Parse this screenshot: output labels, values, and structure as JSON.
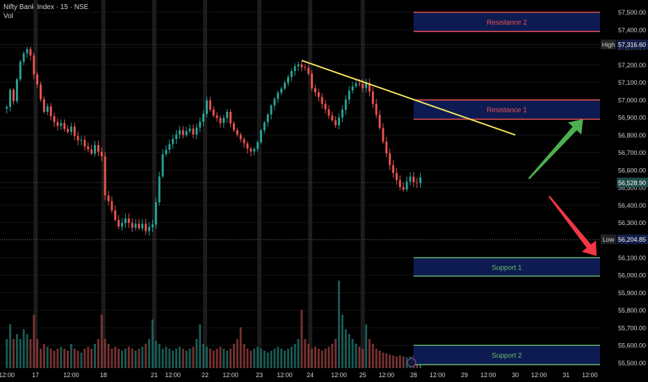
{
  "legend": {
    "symbol_line": "Nifty Bank Index · 15 · NSE",
    "volume_label": "Vol"
  },
  "colors": {
    "background": "#000000",
    "up": "#26a69a",
    "down": "#ef5350",
    "resistance_border": "#ef5350",
    "resistance_text": "#ef5350",
    "support_border": "#66bb6a",
    "support_text": "#66bb6a",
    "zone_fill": "#0d1b52",
    "trendline": "#f5e85c",
    "arrow_up": "#4caf50",
    "arrow_down": "#f23645",
    "axis_text": "#d1d4dc"
  },
  "chart_data": {
    "type": "candlestick",
    "y_axis": {
      "ylim": [
        55470,
        57570
      ],
      "ticks": [
        57500,
        57400,
        57300,
        57200,
        57100,
        57000,
        56900,
        56800,
        56700,
        56600,
        56500,
        56400,
        56300,
        56200,
        56100,
        56000,
        55900,
        55800,
        55700,
        55600,
        55500
      ],
      "tick_labels": [
        "57,500.00",
        "57,400.00",
        "57,300.00",
        "57,200.00",
        "57,100.00",
        "57,000.00",
        "56,900.00",
        "56,800.00",
        "56,700.00",
        "56,600.00",
        "56,500.00",
        "56,400.00",
        "56,300.00",
        "56,200.00",
        "56,100.00",
        "56,000.00",
        "55,900.00",
        "55,800.00",
        "55,700.00",
        "55,600.00",
        "55,500.00"
      ]
    },
    "x_axis": {
      "tick_labels": [
        "12:00",
        "17",
        "12:00",
        "18",
        "21",
        "12:00",
        "22",
        "12:00",
        "23",
        "12:00",
        "24",
        "12:00",
        "25",
        "12:00",
        "28",
        "12:00",
        "29",
        "12:00",
        "30",
        "12:00",
        "31",
        "12:00"
      ],
      "tick_index": [
        0,
        8.5,
        19,
        28.5,
        43.5,
        49,
        58.5,
        66,
        74.5,
        82,
        89.5,
        98,
        105,
        112,
        120,
        127,
        135,
        142,
        150,
        157,
        165,
        172
      ],
      "index_range": [
        -2,
        175
      ]
    },
    "price_path": [
      56960,
      57050,
      56980,
      57100,
      57200,
      57250,
      57280,
      57250,
      57150,
      57100,
      57020,
      56950,
      56980,
      56920,
      56880,
      56850,
      56860,
      56820,
      56800,
      56830,
      56780,
      56760,
      56770,
      56740,
      56730,
      56710,
      56760,
      56720,
      56690,
      56460,
      56420,
      56360,
      56300,
      56260,
      56280,
      56310,
      56290,
      56270,
      56300,
      56280,
      56310,
      56270,
      56290,
      56300,
      56420,
      56560,
      56680,
      56700,
      56730,
      56760,
      56790,
      56820,
      56800,
      56830,
      56850,
      56820,
      56860,
      56890,
      56930,
      57000,
      56940,
      56900,
      56880,
      56850,
      56880,
      56920,
      56860,
      56830,
      56810,
      56790,
      56770,
      56740,
      56720,
      56730,
      56760,
      56820,
      56860,
      56900,
      56950,
      56990,
      57030,
      57060,
      57100,
      57140,
      57180,
      57210,
      57220,
      57200,
      57190,
      57150,
      57060,
      57030,
      57000,
      56960,
      56930,
      56900,
      56880,
      56860,
      56910,
      56960,
      57020,
      57070,
      57090,
      57100,
      57090,
      57060,
      57080,
      57030,
      56960,
      56900,
      56830,
      56760,
      56700,
      56640,
      56600,
      56560,
      56520,
      56500,
      56540,
      56560,
      56520,
      56510,
      56540
    ],
    "candle_count": 123,
    "volume": {
      "relative_values": [
        0.3,
        0.45,
        0.3,
        0.35,
        0.3,
        0.4,
        0.35,
        0.3,
        0.55,
        0.3,
        0.2,
        0.25,
        0.22,
        0.2,
        0.18,
        0.2,
        0.22,
        0.2,
        0.18,
        0.25,
        0.2,
        0.18,
        0.16,
        0.2,
        0.22,
        0.2,
        0.25,
        0.3,
        0.55,
        0.3,
        0.25,
        0.2,
        0.22,
        0.2,
        0.18,
        0.2,
        0.22,
        0.2,
        0.18,
        0.2,
        0.22,
        0.25,
        0.3,
        0.5,
        0.28,
        0.25,
        0.2,
        0.22,
        0.2,
        0.18,
        0.2,
        0.22,
        0.2,
        0.18,
        0.2,
        0.22,
        0.3,
        0.45,
        0.25,
        0.22,
        0.2,
        0.18,
        0.2,
        0.22,
        0.2,
        0.18,
        0.2,
        0.25,
        0.3,
        0.42,
        0.25,
        0.2,
        0.18,
        0.2,
        0.22,
        0.2,
        0.18,
        0.16,
        0.18,
        0.2,
        0.22,
        0.2,
        0.18,
        0.2,
        0.22,
        0.25,
        0.3,
        0.6,
        0.3,
        0.25,
        0.2,
        0.22,
        0.2,
        0.18,
        0.2,
        0.22,
        0.25,
        0.3,
        0.9,
        0.55,
        0.4,
        0.35,
        0.3,
        0.25,
        0.22,
        0.2,
        0.45,
        0.3,
        0.25,
        0.2,
        0.18,
        0.16,
        0.15,
        0.14,
        0.13,
        0.12,
        0.13,
        0.12,
        0.11,
        0.12,
        0.13,
        0.14,
        0.12
      ]
    },
    "vertical_separators_index": [
      8.5,
      28.5,
      43.5,
      58.5,
      74.5,
      89.5,
      105
    ],
    "reference_levels": [
      {
        "label": "High",
        "value": 57316.6,
        "value_text": "57,316.60"
      },
      {
        "label": "",
        "value": 56528.9,
        "value_text": "56,528.90"
      },
      {
        "label": "Low",
        "value": 56204.85,
        "value_text": "56,204.85"
      }
    ],
    "zones": [
      {
        "name": "Resistance 2",
        "kind": "resistance",
        "top": 57500,
        "bottom": 57390
      },
      {
        "name": "Resistance 1",
        "kind": "resistance",
        "top": 57000,
        "bottom": 56890
      },
      {
        "name": "Support 1",
        "kind": "support",
        "top": 56100,
        "bottom": 55995
      },
      {
        "name": "Support 2",
        "kind": "support",
        "top": 55600,
        "bottom": 55490
      }
    ],
    "zone_index_range": [
      120,
      175
    ],
    "trendline": {
      "from": [
        87,
        57225
      ],
      "to": [
        150,
        56800
      ]
    },
    "arrows": [
      {
        "name": "up-arrow",
        "from": [
          154,
          56550
        ],
        "to": [
          170,
          56890
        ]
      },
      {
        "name": "down-arrow",
        "from": [
          160,
          56450
        ],
        "to": [
          174,
          56110
        ]
      }
    ],
    "grid": true
  }
}
